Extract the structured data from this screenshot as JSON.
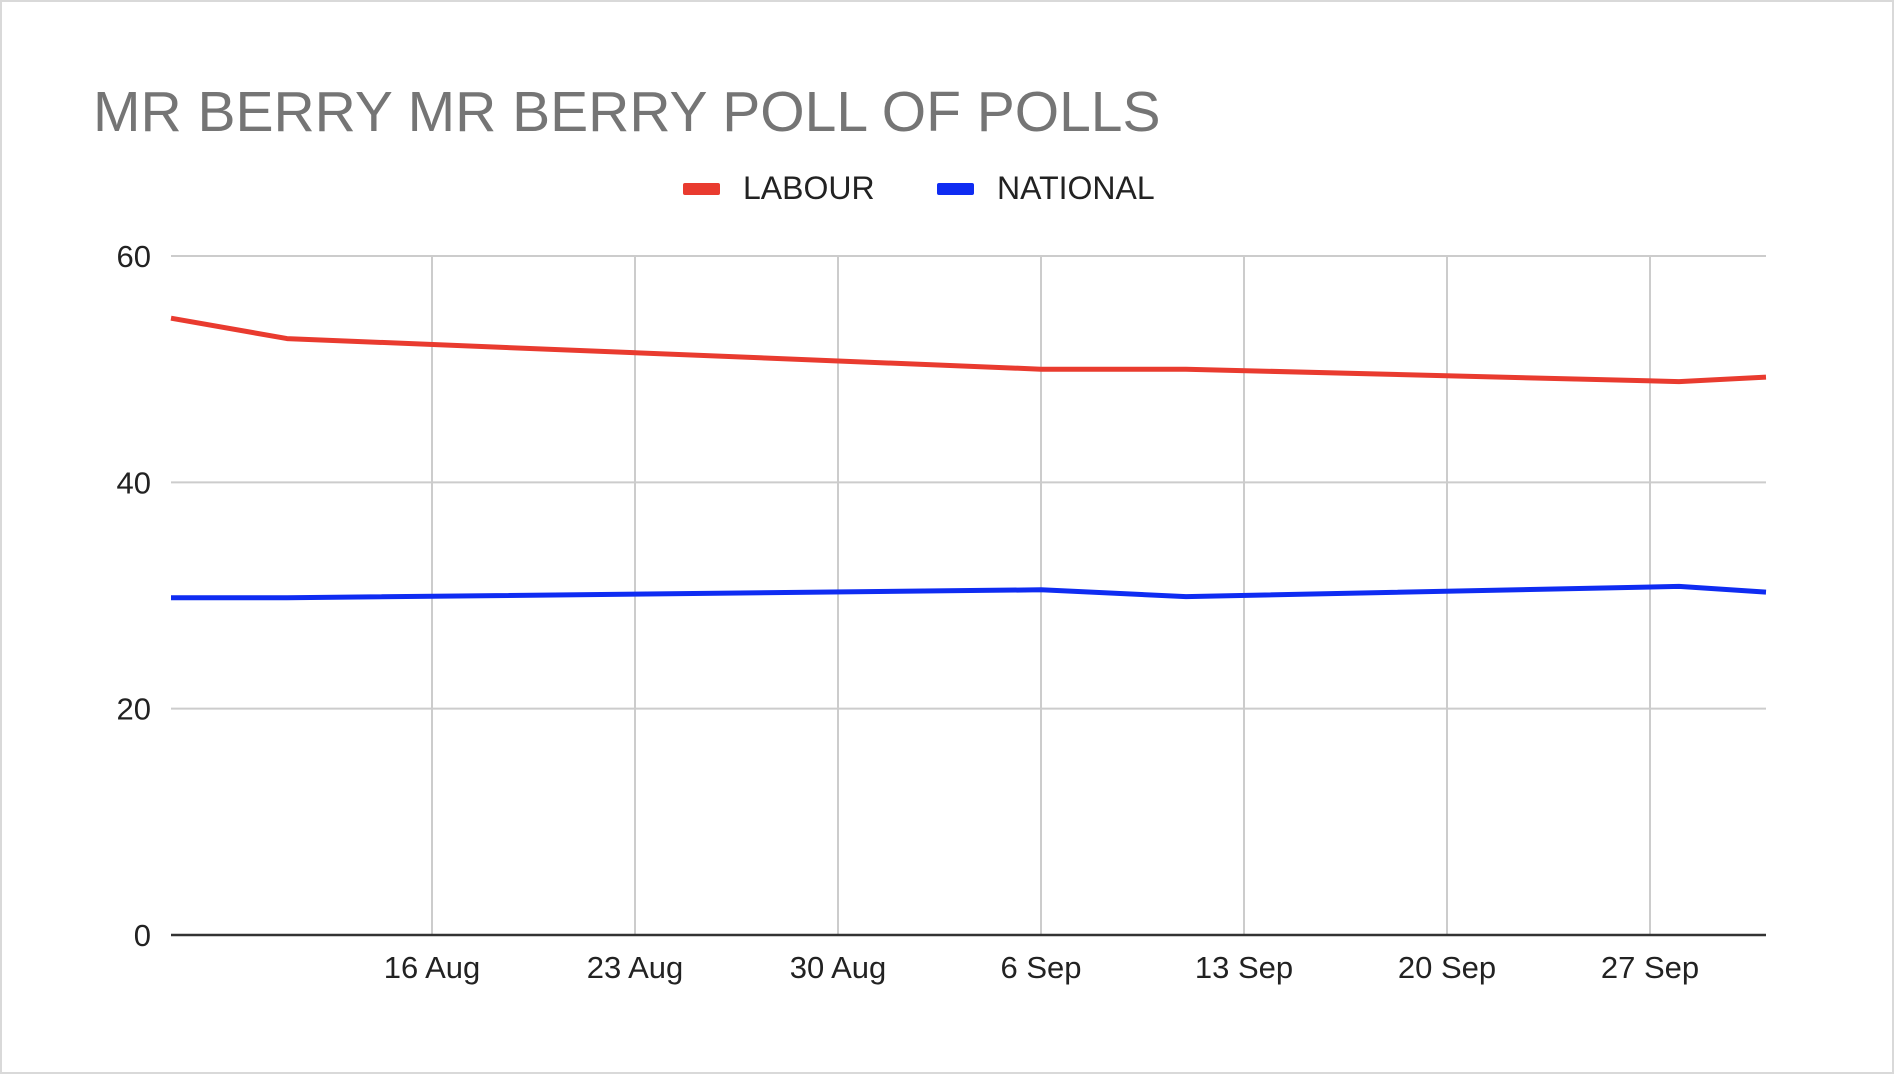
{
  "chart_data": {
    "type": "line",
    "title": "MR BERRY MR BERRY POLL OF POLLS",
    "xlabel": "",
    "ylabel": "",
    "ylim": [
      0,
      60
    ],
    "xlim": [
      "2023-08-07",
      "2023-10-01"
    ],
    "yticks": [
      0,
      20,
      40,
      60
    ],
    "xticks": [
      {
        "date": "2023-08-16",
        "label": "16 Aug"
      },
      {
        "date": "2023-08-23",
        "label": "23 Aug"
      },
      {
        "date": "2023-08-30",
        "label": "30 Aug"
      },
      {
        "date": "2023-09-06",
        "label": "6 Sep"
      },
      {
        "date": "2023-09-13",
        "label": "13 Sep"
      },
      {
        "date": "2023-09-20",
        "label": "20 Sep"
      },
      {
        "date": "2023-09-27",
        "label": "27 Sep"
      }
    ],
    "grid": true,
    "legend_position": "top",
    "series": [
      {
        "name": "LABOUR",
        "color": "#e93b2f",
        "points": [
          {
            "x": "2023-08-07",
            "y": 54.5
          },
          {
            "x": "2023-08-11",
            "y": 52.7
          },
          {
            "x": "2023-09-06",
            "y": 50.0
          },
          {
            "x": "2023-09-11",
            "y": 50.0
          },
          {
            "x": "2023-09-28",
            "y": 48.9
          },
          {
            "x": "2023-10-01",
            "y": 49.3
          }
        ]
      },
      {
        "name": "NATIONAL",
        "color": "#0f2cf2",
        "points": [
          {
            "x": "2023-08-07",
            "y": 29.8
          },
          {
            "x": "2023-08-11",
            "y": 29.8
          },
          {
            "x": "2023-09-06",
            "y": 30.5
          },
          {
            "x": "2023-09-11",
            "y": 29.9
          },
          {
            "x": "2023-09-28",
            "y": 30.8
          },
          {
            "x": "2023-10-01",
            "y": 30.3
          }
        ]
      }
    ]
  }
}
